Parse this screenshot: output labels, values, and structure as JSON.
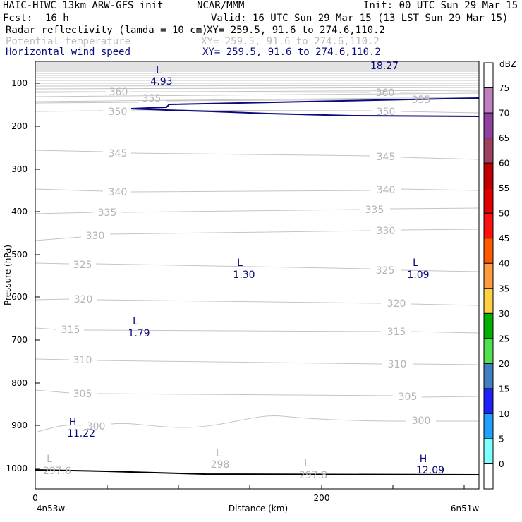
{
  "header": {
    "model_title": "HAIC-HIWC 13km ARW-GFS init",
    "organization": "NCAR/MMM",
    "init_time": "Init: 00 UTC Sun 29 Mar 15",
    "forecast_label": "Fcst:",
    "forecast_value": "16 h",
    "valid_time": "Valid: 16 UTC Sun 29 Mar 15 (13 LST Sun 29 Mar 15)",
    "field1_name": "Radar reflectivity (lamda = 10 cm)",
    "field1_coords": "XY= 259.5, 91.6 to 274.6,110.2",
    "field2_name": "Potential temperature",
    "field2_coords": "XY= 259.5, 91.6 to 274.6,110.2",
    "field3_name": "Horizontal wind speed",
    "field3_coords": "XY= 259.5, 91.6 to 274.6,110.2"
  },
  "chart_data": {
    "type": "cross-section",
    "xlabel": "Distance (km)",
    "ylabel": "Pressure (hPa)",
    "x_ticks": [
      "0",
      "200"
    ],
    "x_range_km": [
      0,
      310
    ],
    "y_ticks": [
      "100",
      "200",
      "300",
      "400",
      "500",
      "600",
      "700",
      "800",
      "900",
      "1000"
    ],
    "y_range_hpa": [
      1045,
      60
    ],
    "left_endpoint_label": "4n53w",
    "right_endpoint_label": "6n51w",
    "theta_contour_labels": [
      "360",
      "355",
      "350",
      "345",
      "340",
      "335",
      "330",
      "325",
      "320",
      "315",
      "310",
      "305",
      "300"
    ],
    "wind_maximum_label": "18.27",
    "wind_extrema": [
      {
        "type": "L",
        "value": "4.93",
        "x_km": 86,
        "p_hpa": 60
      },
      {
        "type": "L",
        "value": "1.30",
        "x_km": 145,
        "p_hpa": 525
      },
      {
        "type": "L",
        "value": "1.09",
        "x_km": 268,
        "p_hpa": 525
      },
      {
        "type": "L",
        "value": "1.79",
        "x_km": 70,
        "p_hpa": 665
      },
      {
        "type": "H",
        "value": "11.22",
        "x_km": 25,
        "p_hpa": 905
      },
      {
        "type": "H",
        "value": "12.09",
        "x_km": 272,
        "p_hpa": 1000
      }
    ],
    "theta_extrema": [
      {
        "type": "L",
        "value": "297.6",
        "x_km": 10,
        "p_hpa": 995
      },
      {
        "type": "L",
        "value": "298",
        "x_km": 128,
        "p_hpa": 985
      },
      {
        "type": "L",
        "value": "297.8",
        "x_km": 190,
        "p_hpa": 1005
      }
    ],
    "colorbar": {
      "unit": "dBZ",
      "levels": [
        "75",
        "70",
        "65",
        "60",
        "55",
        "50",
        "45",
        "40",
        "35",
        "30",
        "25",
        "20",
        "15",
        "10",
        "5",
        "0"
      ],
      "colors": [
        "#c080c0",
        "#9040a0",
        "#a04060",
        "#c00000",
        "#e00000",
        "#ff1010",
        "#ff5a00",
        "#ff9a40",
        "#ffd040",
        "#00b000",
        "#50e050",
        "#4080c0",
        "#2020ff",
        "#20a0ff",
        "#80ffff",
        "#ffffff"
      ]
    }
  }
}
